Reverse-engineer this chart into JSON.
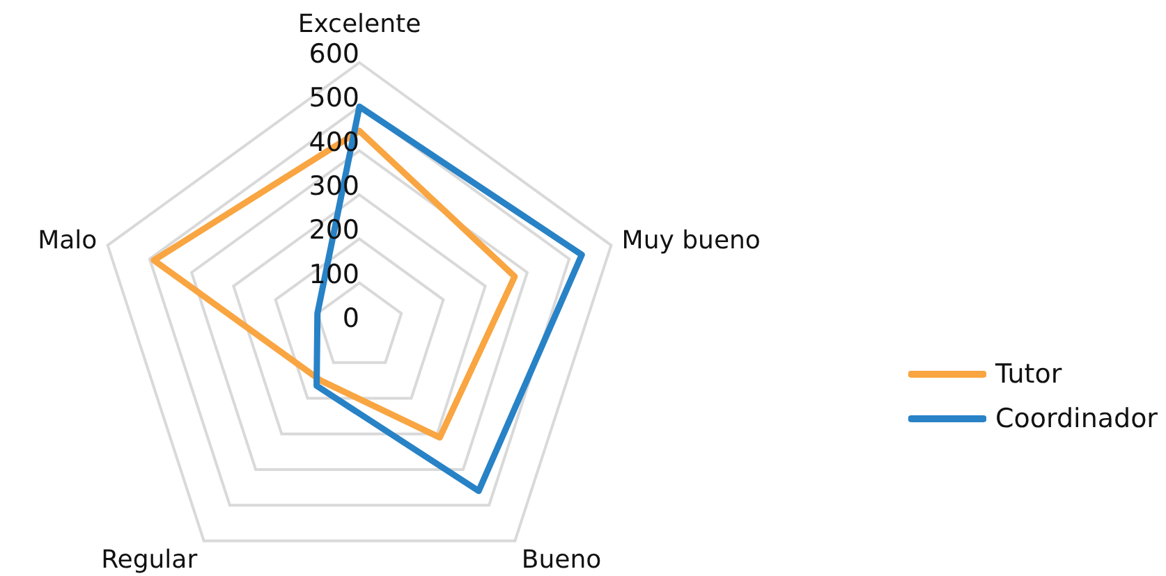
{
  "chart_data": {
    "type": "radar",
    "categories": [
      "Excelente",
      "Muy bueno",
      "Bueno",
      "Regular",
      "Malo"
    ],
    "series": [
      {
        "name": "Tutor",
        "color": "#f9a541",
        "values": [
          445,
          370,
          310,
          150,
          490
        ]
      },
      {
        "name": "Coordinador",
        "color": "#2882c6",
        "values": [
          500,
          530,
          460,
          165,
          100
        ]
      }
    ],
    "ylim": [
      0,
      600
    ],
    "yticks": [
      0,
      100,
      200,
      300,
      400,
      500,
      600
    ],
    "grid": true,
    "legend": "right",
    "marker": "none"
  }
}
